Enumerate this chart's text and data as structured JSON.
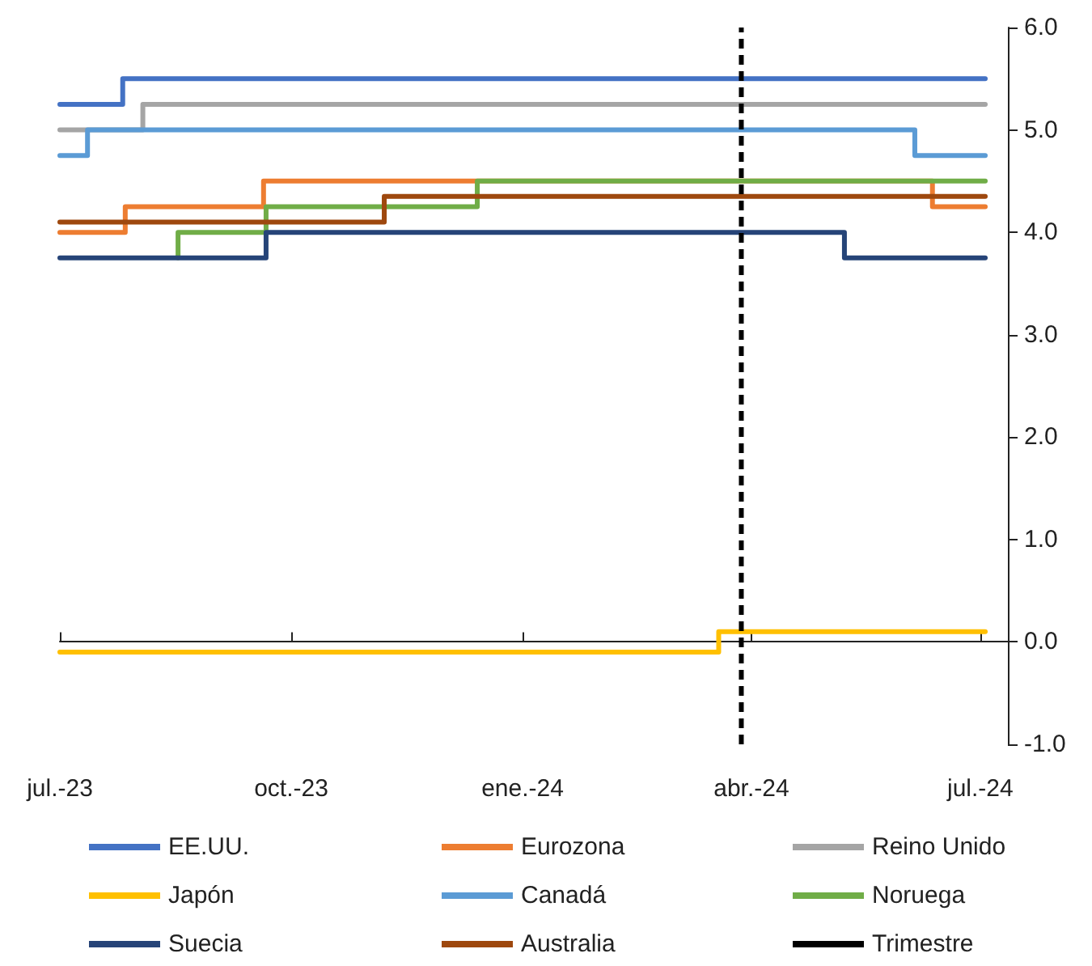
{
  "chart_data": {
    "type": "step",
    "xlim": [
      "2023-07-01",
      "2024-07-12"
    ],
    "xticks": [
      {
        "value": "2023-07-01",
        "label": "jul.-23"
      },
      {
        "value": "2023-10-01",
        "label": "oct.-23"
      },
      {
        "value": "2024-01-01",
        "label": "ene.-24"
      },
      {
        "value": "2024-04-01",
        "label": "abr.-24"
      },
      {
        "value": "2024-07-01",
        "label": "jul.-24"
      }
    ],
    "ylim": [
      -1,
      6
    ],
    "yticks": [
      {
        "value": -1,
        "label": "-1.0"
      },
      {
        "value": 0,
        "label": "0.0"
      },
      {
        "value": 1,
        "label": "1.0"
      },
      {
        "value": 2,
        "label": "2.0"
      },
      {
        "value": 3,
        "label": "3.0"
      },
      {
        "value": 4,
        "label": "4.0"
      },
      {
        "value": 5,
        "label": "5.0"
      },
      {
        "value": 6,
        "label": "6.0"
      }
    ],
    "legend": "bottom",
    "marker": "none",
    "series": [
      {
        "name": "EE.UU.",
        "color": "#4472c4",
        "x": [
          "2023-07-01",
          "2023-07-26",
          "2024-07-03"
        ],
        "values": [
          5.25,
          5.5,
          5.5
        ]
      },
      {
        "name": "Eurozona",
        "color": "#ed7d31",
        "x": [
          "2023-07-01",
          "2023-07-27",
          "2023-09-20",
          "2024-06-12",
          "2024-07-03"
        ],
        "values": [
          4.0,
          4.25,
          4.5,
          4.25,
          4.25
        ]
      },
      {
        "name": "Reino Unido",
        "color": "#a5a5a5",
        "x": [
          "2023-07-01",
          "2023-08-03",
          "2024-07-03"
        ],
        "values": [
          5.0,
          5.25,
          5.25
        ]
      },
      {
        "name": "Japón",
        "color": "#ffc000",
        "x": [
          "2023-07-01",
          "2024-03-19",
          "2024-07-03"
        ],
        "values": [
          -0.1,
          0.1,
          0.1
        ]
      },
      {
        "name": "Canadá",
        "color": "#5b9bd5",
        "x": [
          "2023-07-01",
          "2023-07-12",
          "2024-06-05",
          "2024-07-03"
        ],
        "values": [
          4.75,
          5.0,
          4.75,
          4.75
        ]
      },
      {
        "name": "Noruega",
        "color": "#70ad47",
        "x": [
          "2023-08-17",
          "2023-08-17",
          "2023-09-21",
          "2023-12-14",
          "2024-07-03"
        ],
        "values": [
          3.75,
          4.0,
          4.25,
          4.5,
          4.5
        ]
      },
      {
        "name": "Suecia",
        "color": "#264478",
        "x": [
          "2023-07-01",
          "2023-09-21",
          "2024-05-08",
          "2024-07-03"
        ],
        "values": [
          3.75,
          4.0,
          3.75,
          3.75
        ]
      },
      {
        "name": "Australia",
        "color": "#9e480e",
        "x": [
          "2023-07-01",
          "2023-11-07",
          "2024-07-03"
        ],
        "values": [
          4.1,
          4.35,
          4.35
        ]
      },
      {
        "name": "Trimestre",
        "type": "line",
        "line_style": "dashed",
        "color": "#000000",
        "x": [
          "2024-03-28",
          "2024-03-28"
        ],
        "values": [
          -1,
          6
        ]
      }
    ]
  }
}
